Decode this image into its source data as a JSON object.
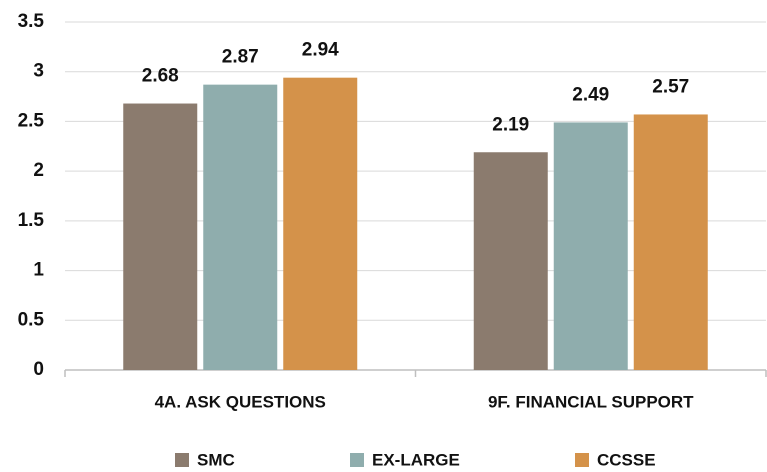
{
  "chart_data": {
    "type": "bar",
    "categories": [
      "4A. ASK QUESTIONS",
      "9F. FINANCIAL SUPPORT"
    ],
    "series": [
      {
        "name": "SMC",
        "color": "#8b7b6e",
        "values": [
          2.68,
          2.19
        ]
      },
      {
        "name": "EX-LARGE",
        "color": "#8fadad",
        "values": [
          2.87,
          2.49
        ]
      },
      {
        "name": "CCSSE",
        "color": "#d4924a",
        "values": [
          2.94,
          2.57
        ]
      }
    ],
    "ylim": [
      0,
      3.5
    ],
    "yticks": [
      0,
      0.5,
      1,
      1.5,
      2,
      2.5,
      3,
      3.5
    ],
    "grid": true,
    "legend": "bottom"
  }
}
